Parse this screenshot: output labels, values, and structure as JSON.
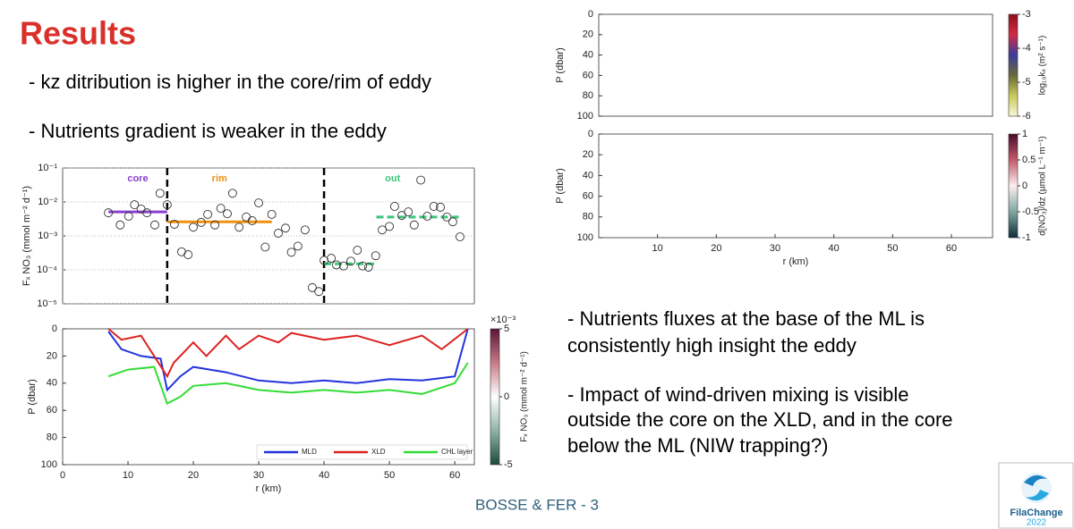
{
  "title": "Results",
  "bullets_left": [
    "- kz ditribution is higher in the core/rim of eddy",
    "- Nutrients gradient is weaker in the eddy"
  ],
  "bullets_right": [
    [
      "- Nutrients fluxes at the base of the ML is",
      "consistently high insight the eddy"
    ],
    [
      "- Impact of wind-driven mixing is visible",
      "outside the core on the XLD, and in the core",
      "below the ML (NIW trapping?)"
    ]
  ],
  "footer": "BOSSE & FER - 3",
  "logo": {
    "name": "FilaChange",
    "year": "2022"
  },
  "chart_data": [
    {
      "type": "scatter",
      "ylabel": "Fₓ NO₃ (mmol m⁻² d⁻¹)",
      "log_scale": true,
      "grid": true,
      "xlim": [
        0,
        63
      ],
      "ylim": [
        1e-05,
        0.1
      ],
      "yticks": [
        {
          "value": 1e-05,
          "label": "10⁻⁵"
        },
        {
          "value": 0.0001,
          "label": "10⁻⁴"
        },
        {
          "value": 0.001,
          "label": "10⁻³"
        },
        {
          "value": 0.01,
          "label": "10⁻²"
        },
        {
          "value": 0.1,
          "label": "10⁻¹"
        }
      ],
      "color": "#333333",
      "dividers": [
        16,
        40
      ],
      "x": [
        7,
        8.8,
        10.1,
        11,
        12,
        12.9,
        14.1,
        14.9,
        16,
        17.1,
        18.2,
        19.2,
        20,
        21.2,
        22.2,
        23.3,
        24.2,
        25.2,
        26,
        27,
        28.1,
        29,
        30,
        31,
        32,
        33,
        34.1,
        35,
        36,
        37.1,
        38.2,
        39.2,
        40,
        41.1,
        41.9,
        43,
        44.1,
        45.1,
        45.9,
        46.8,
        47.9,
        48.9,
        50,
        50.8,
        51.9,
        52.9,
        53.8,
        54.8,
        55.8,
        56.8,
        57.8,
        58.8,
        59.7,
        60.8
      ],
      "values": [
        0.0048,
        0.0021,
        0.0038,
        0.0083,
        0.0062,
        0.0048,
        0.0021,
        0.018,
        0.0083,
        0.0022,
        0.00034,
        0.00028,
        0.0018,
        0.0025,
        0.0043,
        0.0021,
        0.0065,
        0.0045,
        0.018,
        0.0018,
        0.0036,
        0.0028,
        0.0094,
        0.00047,
        0.0043,
        0.0012,
        0.0017,
        0.00033,
        0.0005,
        0.0015,
        3e-05,
        2.3e-05,
        0.00019,
        0.00022,
        0.00014,
        0.00013,
        0.00018,
        0.00038,
        0.00013,
        0.00012,
        0.00026,
        0.0015,
        0.0019,
        0.0074,
        0.004,
        0.0051,
        0.0021,
        0.044,
        0.0038,
        0.0074,
        0.007,
        0.0036,
        0.0026,
        0.00094
      ],
      "groups": [
        {
          "name": "core",
          "color": "#8a3fd1",
          "dashed": false,
          "segments": [
            {
              "from": 7,
              "to": 16,
              "value": 0.0051
            }
          ]
        },
        {
          "name": "rim",
          "color": "#f0900f",
          "dashed": false,
          "segments": [
            {
              "from": 16,
              "to": 32,
              "value": 0.0026
            }
          ]
        },
        {
          "name": "out",
          "color": "#3cc47a",
          "dashed": true,
          "segments": [
            {
              "from": 40,
              "to": 48,
              "value": 0.00015
            },
            {
              "from": 48,
              "to": 61,
              "value": 0.0036
            }
          ]
        }
      ]
    },
    {
      "type": "line",
      "xlabel": "r (km)",
      "ylabel": "P (dbar)",
      "y_inverted": true,
      "xlim": [
        0,
        63
      ],
      "ylim": [
        0,
        100
      ],
      "xticks": [
        0,
        10,
        20,
        30,
        40,
        50,
        60
      ],
      "yticks": [
        0,
        20,
        40,
        60,
        80,
        100
      ],
      "legend": "lower right",
      "series": [
        {
          "name": "MLD",
          "color": "#2233dd",
          "x": [
            7,
            9,
            12,
            15,
            16,
            18,
            20,
            25,
            30,
            35,
            40,
            45,
            50,
            55,
            60,
            62
          ],
          "values": [
            2,
            15,
            20,
            22,
            45,
            35,
            28,
            32,
            38,
            40,
            38,
            40,
            37,
            38,
            35,
            0
          ]
        },
        {
          "name": "XLD",
          "color": "#dd2222",
          "x": [
            7,
            9,
            12,
            16,
            17,
            20,
            22,
            25,
            27,
            30,
            33,
            35,
            40,
            45,
            50,
            55,
            58,
            62
          ],
          "values": [
            0,
            8,
            5,
            35,
            25,
            10,
            20,
            5,
            15,
            5,
            10,
            3,
            8,
            5,
            12,
            5,
            15,
            0
          ]
        },
        {
          "name": "CHL layer",
          "color": "#33dd33",
          "x": [
            7,
            10,
            14,
            16,
            18,
            20,
            25,
            30,
            35,
            40,
            45,
            50,
            55,
            60,
            62
          ],
          "values": [
            35,
            30,
            28,
            55,
            50,
            42,
            40,
            45,
            47,
            45,
            47,
            45,
            48,
            40,
            25
          ]
        }
      ],
      "colorbar": {
        "label": "Fₓ NO₃ (mmol m⁻² d⁻¹)",
        "multiplier": "×10⁻³",
        "colors": [
          "#5a1436",
          "#c77a86",
          "#ffffff",
          "#8fb3a6",
          "#1c4a3c"
        ],
        "ylim": [
          -0.005,
          0.005
        ],
        "ticks": [
          {
            "value": 0.005,
            "label": "5"
          },
          {
            "value": 0,
            "label": "0"
          },
          {
            "value": -0.005,
            "label": "-5"
          }
        ]
      }
    },
    {
      "type": "heatmap",
      "ylabel": "P (dbar)",
      "y_inverted": true,
      "xlim": [
        0,
        67
      ],
      "ylim": [
        0,
        100
      ],
      "yticks": [
        0,
        20,
        40,
        60,
        80,
        100
      ],
      "colorbar": {
        "label": "log₁₀kₓ (m² s⁻¹)",
        "colors": [
          "#8b0f1a",
          "#d32a45",
          "#3c3c9c",
          "#6a6a3c",
          "#c9c95a",
          "#f7f7d6"
        ],
        "ylim": [
          -6,
          -3
        ],
        "ticks": [
          -3,
          -4,
          -5,
          -6
        ]
      }
    },
    {
      "type": "heatmap",
      "xlabel": "r (km)",
      "ylabel": "P (dbar)",
      "y_inverted": true,
      "xlim": [
        0,
        67
      ],
      "ylim": [
        0,
        100
      ],
      "xticks": [
        10,
        20,
        30,
        40,
        50,
        60
      ],
      "yticks": [
        0,
        20,
        40,
        60,
        80,
        100
      ],
      "colorbar": {
        "label": "d[NO₃]/dz (µmol L⁻¹ m⁻¹)",
        "colors": [
          "#4a0a2a",
          "#c25a6a",
          "#fbeeee",
          "#7fa8a0",
          "#0e2e3a"
        ],
        "ylim": [
          -1,
          1
        ],
        "ticks": [
          1,
          0.5,
          0,
          -0.5,
          -1
        ]
      }
    }
  ]
}
